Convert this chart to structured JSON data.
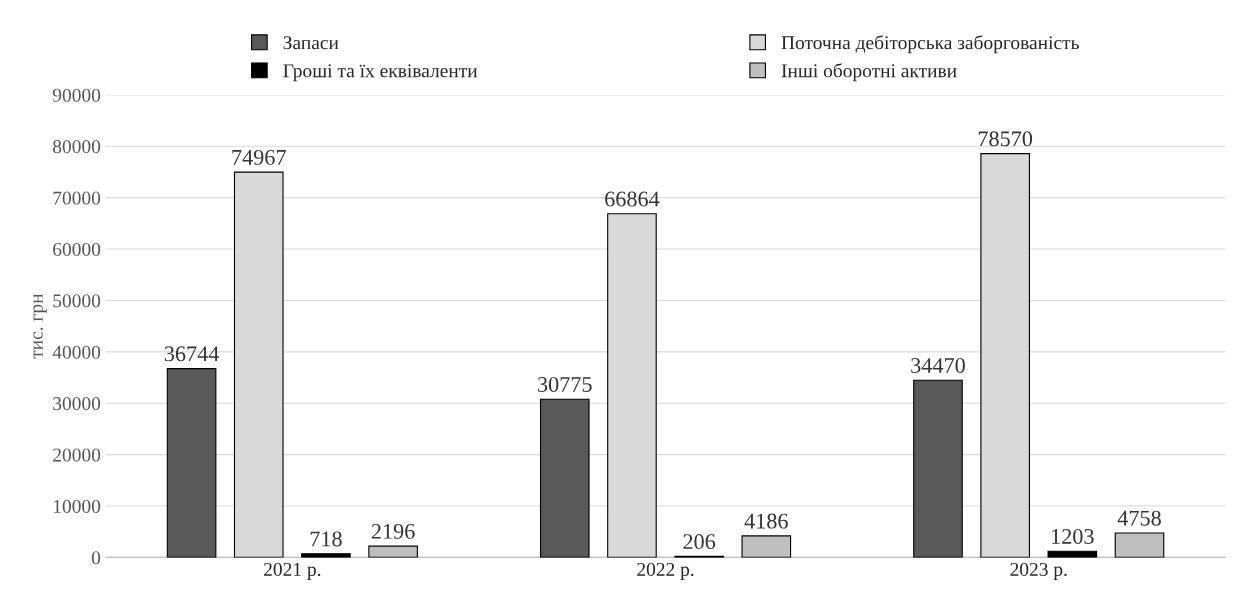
{
  "chart_data": {
    "type": "bar",
    "ylabel": "тис. грн",
    "categories": [
      "2021 р.",
      "2022 р.",
      "2023 р."
    ],
    "series": [
      {
        "name": "Запаси",
        "color": "#595959",
        "values": [
          36744,
          30775,
          34470
        ]
      },
      {
        "name": "Поточна дебіторська заборгованість",
        "color": "#d9d9d9",
        "values": [
          74967,
          66864,
          78570
        ]
      },
      {
        "name": "Гроші та їх еквіваленти",
        "color": "#000000",
        "values": [
          718,
          206,
          1203
        ]
      },
      {
        "name": "Інші оборотні активи",
        "color": "#bfbfbf",
        "values": [
          2196,
          4186,
          4758
        ]
      }
    ],
    "ylim": [
      0,
      90000
    ],
    "yticks": [
      0,
      10000,
      20000,
      30000,
      40000,
      50000,
      60000,
      70000,
      80000,
      90000
    ],
    "grid": "y",
    "legend": "top",
    "data_labels": true
  }
}
